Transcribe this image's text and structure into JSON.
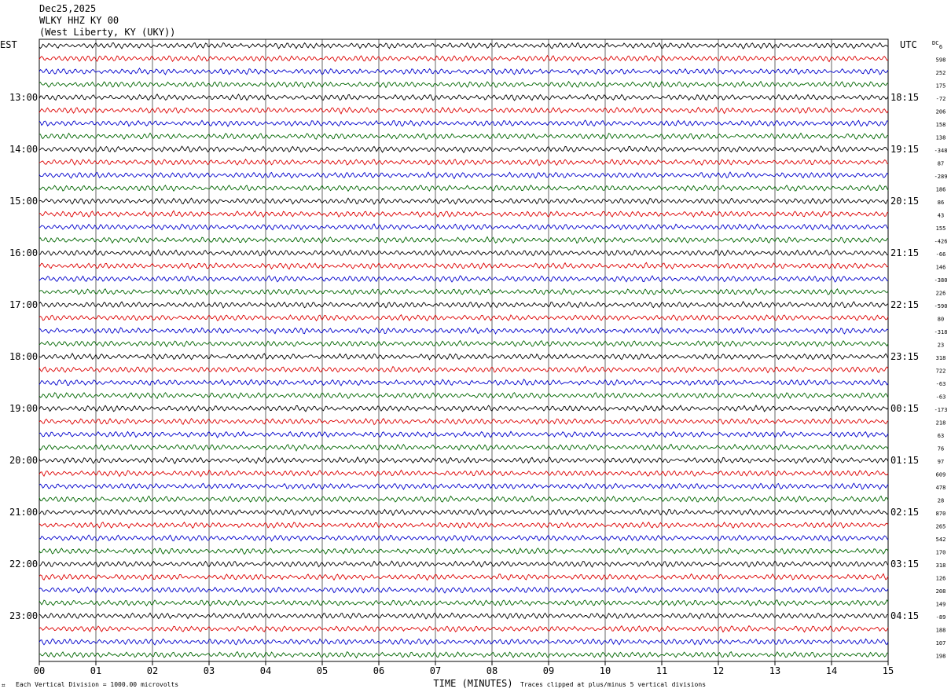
{
  "header": {
    "date": "Dec25,2025",
    "station": "WLKY HHZ KY 00",
    "location": "(West Liberty, KY (UKY))"
  },
  "chart_data": {
    "type": "line",
    "title": "WLKY HHZ KY 00",
    "xlabel": "TIME (MINUTES)",
    "left_axis_label": "EST",
    "right_axis_label": "UTC",
    "dc_label": "DC",
    "x_ticks": [
      "00",
      "01",
      "02",
      "03",
      "04",
      "05",
      "06",
      "07",
      "08",
      "09",
      "10",
      "11",
      "12",
      "13",
      "14",
      "15"
    ],
    "xlim": [
      0,
      15
    ],
    "left_hour_labels": [
      "13:00",
      "14:00",
      "15:00",
      "16:00",
      "17:00",
      "18:00",
      "19:00",
      "20:00",
      "21:00",
      "22:00",
      "23:00"
    ],
    "right_hour_labels": [
      "18:15",
      "19:15",
      "20:15",
      "21:15",
      "22:15",
      "23:15",
      "00:15",
      "01:15",
      "02:15",
      "03:15",
      "04:15"
    ],
    "first_labeled_trace_index": 4,
    "traces_per_hour": 4,
    "trace_colors": [
      "#000000",
      "#dd0000",
      "#0000cc",
      "#006600"
    ],
    "dc_offsets": [
      "6",
      "598",
      "252",
      "175",
      "-72",
      "206",
      "158",
      "138",
      "-348",
      "87",
      "-289",
      "186",
      "86",
      "43",
      "155",
      "-426",
      "-66",
      "146",
      "-380",
      "226",
      "-590",
      "80",
      "-318",
      "23",
      "318",
      "722",
      "-63",
      "-63",
      "-173",
      "218",
      "63",
      "76",
      "97",
      "609",
      "478",
      "28",
      "870",
      "265",
      "542",
      "170",
      "318",
      "126",
      "208",
      "149",
      "-89",
      "188",
      "107",
      "198"
    ],
    "footer_left": "Each Vertical Division = 1000.00 microvolts",
    "footer_right": "Traces clipped at plus/minus 5 vertical divisions",
    "grid": true
  }
}
